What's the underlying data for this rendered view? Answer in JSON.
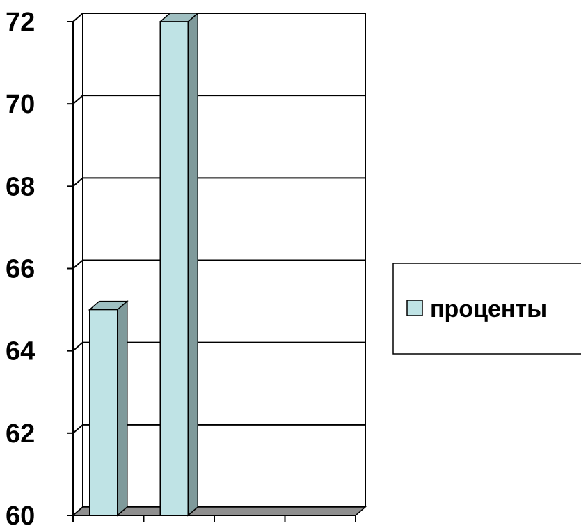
{
  "chart_data": {
    "type": "bar",
    "categories": [
      "",
      "",
      "",
      ""
    ],
    "series": [
      {
        "name": "проценты",
        "values": [
          65,
          72,
          60,
          60
        ],
        "color": "#bfe3e5",
        "side_color": "#7f9a9b",
        "top_color": "#9fbfc1"
      }
    ],
    "yticks": [
      60,
      62,
      64,
      66,
      68,
      70,
      72
    ],
    "ylim": [
      60,
      72
    ],
    "grid": true,
    "legend": {
      "placement": "right",
      "label": "проценты"
    },
    "floor_color": "#8f8f8f"
  }
}
